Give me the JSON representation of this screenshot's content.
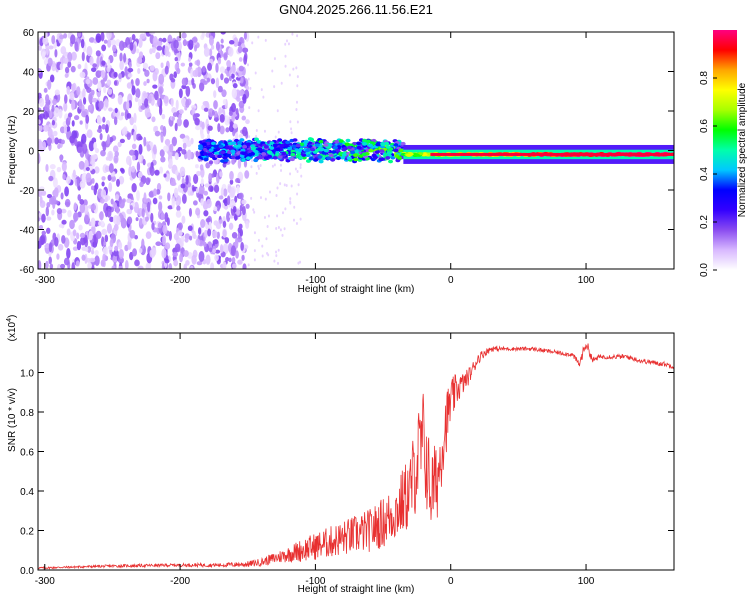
{
  "figure_title": "GN04.2025.266.11.56.E21",
  "chart_data": [
    {
      "type": "heatmap",
      "title": "GN04.2025.266.11.56.E21",
      "xlabel": "Height of straight line (km)",
      "ylabel": "Frequency (Hz)",
      "xlim": [
        -305,
        165
      ],
      "ylim": [
        -60,
        60
      ],
      "x_ticks": [
        -300,
        -200,
        -100,
        0,
        100
      ],
      "y_ticks": [
        -60,
        -40,
        -20,
        0,
        20,
        40,
        60
      ],
      "x_tick_labels": [
        "-300",
        "-200",
        "-100",
        "0",
        "100"
      ],
      "y_tick_labels": [
        "-60",
        "-40",
        "-20",
        "0",
        "20",
        "40",
        "60"
      ],
      "colorbar": {
        "label": "Normalized spectral amplitude",
        "range": [
          0,
          1
        ],
        "ticks": [
          0.0,
          0.2,
          0.4,
          0.6,
          0.8
        ],
        "tick_labels": [
          "0.0",
          "0.2",
          "0.4",
          "0.6",
          "0.8"
        ],
        "colors": [
          "#ffffff",
          "#d8b8ff",
          "#8a4cf0",
          "#3300ff",
          "#0000ff",
          "#00c8ff",
          "#00ffaa",
          "#00ff00",
          "#a8ff00",
          "#ffff00",
          "#ffa500",
          "#ff0000",
          "#ff0080"
        ]
      },
      "regions": [
        {
          "name": "noise",
          "x_range": [
            -305,
            -150
          ],
          "freq_range": [
            -60,
            60
          ],
          "amplitude": 0.15
        },
        {
          "name": "onset",
          "x_range": [
            -185,
            -35
          ],
          "freq_center": 0,
          "halfwidth_hz": 6,
          "amplitude": 0.45
        },
        {
          "name": "carrier",
          "x_range": [
            -35,
            165
          ],
          "freq_center": -2,
          "halfwidth_hz": 3,
          "amplitude": 0.95
        }
      ]
    },
    {
      "type": "line",
      "xlabel": "Height of straight line (km)",
      "ylabel": "SNR (10 * v/v)",
      "scale_label": "(x10",
      "scale_exponent": "4",
      "xlim": [
        -305,
        165
      ],
      "ylim": [
        0,
        1.2
      ],
      "x_ticks": [
        -300,
        -200,
        -100,
        0,
        100
      ],
      "y_ticks": [
        0.0,
        0.2,
        0.4,
        0.6,
        0.8,
        1.0
      ],
      "x_tick_labels": [
        "-300",
        "-200",
        "-100",
        "0",
        "100"
      ],
      "y_tick_labels": [
        "0.0",
        "0.2",
        "0.4",
        "0.6",
        "0.8",
        "1.0"
      ],
      "series": [
        {
          "name": "SNR",
          "color": "#e83030",
          "x": [
            -305,
            -280,
            -250,
            -200,
            -170,
            -150,
            -140,
            -130,
            -120,
            -110,
            -100,
            -90,
            -80,
            -70,
            -60,
            -50,
            -40,
            -30,
            -25,
            -20,
            -15,
            -10,
            -5,
            0,
            5,
            10,
            15,
            20,
            25,
            30,
            40,
            50,
            60,
            70,
            80,
            90,
            95,
            100,
            105,
            110,
            120,
            130,
            140,
            150,
            160,
            165
          ],
          "values": [
            0.01,
            0.015,
            0.02,
            0.025,
            0.025,
            0.03,
            0.04,
            0.06,
            0.08,
            0.1,
            0.12,
            0.14,
            0.16,
            0.18,
            0.2,
            0.24,
            0.3,
            0.4,
            0.55,
            0.65,
            0.4,
            0.45,
            0.7,
            0.85,
            0.92,
            0.95,
            1.0,
            1.07,
            1.1,
            1.12,
            1.12,
            1.12,
            1.12,
            1.11,
            1.1,
            1.09,
            1.04,
            1.15,
            1.06,
            1.08,
            1.08,
            1.08,
            1.06,
            1.05,
            1.04,
            1.03
          ],
          "noise_amplitude": [
            0.005,
            0.005,
            0.007,
            0.008,
            0.01,
            0.015,
            0.02,
            0.03,
            0.04,
            0.06,
            0.07,
            0.08,
            0.09,
            0.1,
            0.11,
            0.13,
            0.15,
            0.2,
            0.25,
            0.28,
            0.22,
            0.2,
            0.18,
            0.12,
            0.08,
            0.05,
            0.04,
            0.03,
            0.02,
            0.015,
            0.01,
            0.01,
            0.01,
            0.01,
            0.01,
            0.012,
            0.02,
            0.03,
            0.015,
            0.012,
            0.012,
            0.012,
            0.012,
            0.012,
            0.012,
            0.012
          ]
        }
      ]
    }
  ]
}
